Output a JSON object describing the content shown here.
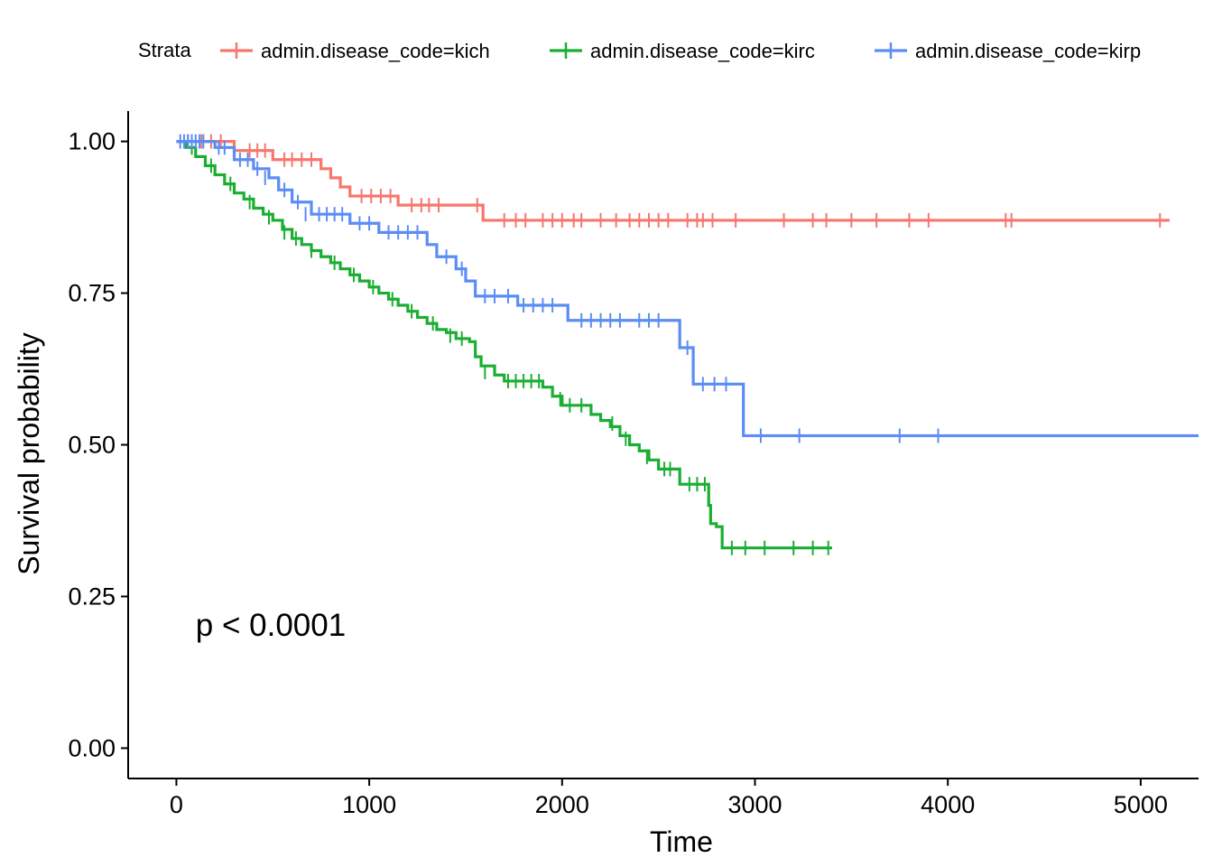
{
  "chart_data": {
    "type": "line",
    "xlabel": "Time",
    "ylabel": "Survival probability",
    "xlim": [
      -250,
      5300
    ],
    "ylim": [
      -0.05,
      1.05
    ],
    "x_ticks": [
      0,
      1000,
      2000,
      3000,
      4000,
      5000
    ],
    "x_tick_labels": [
      "0",
      "1000",
      "2000",
      "3000",
      "4000",
      "5000"
    ],
    "y_ticks": [
      0,
      0.25,
      0.5,
      0.75,
      1.0
    ],
    "y_tick_labels": [
      "0.00",
      "0.25",
      "0.50",
      "0.75",
      "1.00"
    ],
    "grid": false,
    "legend": {
      "title": "Strata",
      "position": "top",
      "entries": [
        "admin.disease_code=kich",
        "admin.disease_code=kirc",
        "admin.disease_code=kirp"
      ]
    },
    "annotation": {
      "text": "p < 0.0001",
      "x": 100,
      "y": 0.2
    },
    "series": [
      {
        "name": "admin.disease_code=kich",
        "color": "#F8766D",
        "steps": [
          [
            0,
            1.0
          ],
          [
            300,
            0.985
          ],
          [
            500,
            0.97
          ],
          [
            750,
            0.955
          ],
          [
            800,
            0.94
          ],
          [
            850,
            0.925
          ],
          [
            900,
            0.91
          ],
          [
            1150,
            0.895
          ],
          [
            1590,
            0.87
          ],
          [
            5150,
            0.87
          ]
        ],
        "censored": [
          [
            60,
            1.0
          ],
          [
            130,
            1.0
          ],
          [
            180,
            1.0
          ],
          [
            230,
            1.0
          ],
          [
            380,
            0.985
          ],
          [
            420,
            0.985
          ],
          [
            460,
            0.985
          ],
          [
            560,
            0.97
          ],
          [
            600,
            0.97
          ],
          [
            650,
            0.97
          ],
          [
            700,
            0.97
          ],
          [
            960,
            0.91
          ],
          [
            1010,
            0.91
          ],
          [
            1060,
            0.91
          ],
          [
            1110,
            0.91
          ],
          [
            1220,
            0.895
          ],
          [
            1270,
            0.895
          ],
          [
            1310,
            0.895
          ],
          [
            1360,
            0.895
          ],
          [
            1560,
            0.895
          ],
          [
            1700,
            0.87
          ],
          [
            1760,
            0.87
          ],
          [
            1810,
            0.87
          ],
          [
            1900,
            0.87
          ],
          [
            1950,
            0.87
          ],
          [
            2000,
            0.87
          ],
          [
            2060,
            0.87
          ],
          [
            2100,
            0.87
          ],
          [
            2200,
            0.87
          ],
          [
            2280,
            0.87
          ],
          [
            2350,
            0.87
          ],
          [
            2400,
            0.87
          ],
          [
            2450,
            0.87
          ],
          [
            2500,
            0.87
          ],
          [
            2550,
            0.87
          ],
          [
            2650,
            0.87
          ],
          [
            2700,
            0.87
          ],
          [
            2730,
            0.87
          ],
          [
            2780,
            0.87
          ],
          [
            2900,
            0.87
          ],
          [
            3150,
            0.87
          ],
          [
            3300,
            0.87
          ],
          [
            3370,
            0.87
          ],
          [
            3500,
            0.87
          ],
          [
            3630,
            0.87
          ],
          [
            3800,
            0.87
          ],
          [
            3900,
            0.87
          ],
          [
            4300,
            0.87
          ],
          [
            4330,
            0.87
          ],
          [
            5100,
            0.87
          ]
        ]
      },
      {
        "name": "admin.disease_code=kirc",
        "color": "#1AAE32",
        "steps": [
          [
            0,
            1.0
          ],
          [
            50,
            0.99
          ],
          [
            100,
            0.975
          ],
          [
            150,
            0.96
          ],
          [
            200,
            0.945
          ],
          [
            250,
            0.93
          ],
          [
            300,
            0.915
          ],
          [
            350,
            0.905
          ],
          [
            400,
            0.89
          ],
          [
            450,
            0.88
          ],
          [
            500,
            0.87
          ],
          [
            550,
            0.855
          ],
          [
            600,
            0.84
          ],
          [
            650,
            0.83
          ],
          [
            700,
            0.82
          ],
          [
            750,
            0.81
          ],
          [
            800,
            0.8
          ],
          [
            850,
            0.79
          ],
          [
            900,
            0.78
          ],
          [
            950,
            0.77
          ],
          [
            1000,
            0.76
          ],
          [
            1050,
            0.75
          ],
          [
            1100,
            0.74
          ],
          [
            1150,
            0.73
          ],
          [
            1200,
            0.72
          ],
          [
            1250,
            0.71
          ],
          [
            1300,
            0.7
          ],
          [
            1350,
            0.69
          ],
          [
            1400,
            0.685
          ],
          [
            1450,
            0.675
          ],
          [
            1520,
            0.67
          ],
          [
            1550,
            0.645
          ],
          [
            1580,
            0.63
          ],
          [
            1650,
            0.615
          ],
          [
            1700,
            0.605
          ],
          [
            1900,
            0.595
          ],
          [
            1950,
            0.58
          ],
          [
            2000,
            0.565
          ],
          [
            2150,
            0.55
          ],
          [
            2200,
            0.54
          ],
          [
            2250,
            0.53
          ],
          [
            2300,
            0.515
          ],
          [
            2350,
            0.5
          ],
          [
            2400,
            0.49
          ],
          [
            2450,
            0.475
          ],
          [
            2500,
            0.46
          ],
          [
            2610,
            0.435
          ],
          [
            2760,
            0.4
          ],
          [
            2770,
            0.37
          ],
          [
            2800,
            0.365
          ],
          [
            2830,
            0.33
          ],
          [
            3400,
            0.33
          ]
        ],
        "censored": [
          [
            80,
            0.99
          ],
          [
            180,
            0.96
          ],
          [
            280,
            0.93
          ],
          [
            380,
            0.9
          ],
          [
            480,
            0.875
          ],
          [
            560,
            0.85
          ],
          [
            620,
            0.84
          ],
          [
            700,
            0.82
          ],
          [
            820,
            0.8
          ],
          [
            920,
            0.78
          ],
          [
            1020,
            0.76
          ],
          [
            1120,
            0.74
          ],
          [
            1220,
            0.72
          ],
          [
            1330,
            0.7
          ],
          [
            1420,
            0.68
          ],
          [
            1480,
            0.675
          ],
          [
            1600,
            0.62
          ],
          [
            1720,
            0.605
          ],
          [
            1760,
            0.605
          ],
          [
            1800,
            0.605
          ],
          [
            1840,
            0.605
          ],
          [
            1880,
            0.605
          ],
          [
            1990,
            0.575
          ],
          [
            2040,
            0.565
          ],
          [
            2100,
            0.565
          ],
          [
            2260,
            0.535
          ],
          [
            2330,
            0.51
          ],
          [
            2440,
            0.48
          ],
          [
            2530,
            0.46
          ],
          [
            2560,
            0.46
          ],
          [
            2660,
            0.435
          ],
          [
            2700,
            0.435
          ],
          [
            2740,
            0.435
          ],
          [
            2880,
            0.33
          ],
          [
            2950,
            0.33
          ],
          [
            3050,
            0.33
          ],
          [
            3200,
            0.33
          ],
          [
            3300,
            0.33
          ],
          [
            3380,
            0.33
          ]
        ]
      },
      {
        "name": "admin.disease_code=kirp",
        "color": "#5B8DF5",
        "steps": [
          [
            0,
            1.0
          ],
          [
            200,
            0.99
          ],
          [
            300,
            0.97
          ],
          [
            400,
            0.955
          ],
          [
            480,
            0.94
          ],
          [
            530,
            0.92
          ],
          [
            600,
            0.9
          ],
          [
            700,
            0.88
          ],
          [
            900,
            0.865
          ],
          [
            1050,
            0.85
          ],
          [
            1300,
            0.83
          ],
          [
            1350,
            0.81
          ],
          [
            1450,
            0.79
          ],
          [
            1500,
            0.77
          ],
          [
            1550,
            0.745
          ],
          [
            1770,
            0.73
          ],
          [
            2030,
            0.705
          ],
          [
            2610,
            0.66
          ],
          [
            2680,
            0.6
          ],
          [
            2940,
            0.515
          ],
          [
            5300,
            0.515
          ]
        ],
        "censored": [
          [
            20,
            1.0
          ],
          [
            40,
            1.0
          ],
          [
            60,
            1.0
          ],
          [
            80,
            1.0
          ],
          [
            100,
            1.0
          ],
          [
            120,
            1.0
          ],
          [
            140,
            1.0
          ],
          [
            220,
            0.99
          ],
          [
            250,
            0.99
          ],
          [
            330,
            0.97
          ],
          [
            370,
            0.97
          ],
          [
            420,
            0.955
          ],
          [
            460,
            0.94
          ],
          [
            560,
            0.92
          ],
          [
            630,
            0.9
          ],
          [
            670,
            0.88
          ],
          [
            740,
            0.88
          ],
          [
            780,
            0.88
          ],
          [
            820,
            0.88
          ],
          [
            860,
            0.88
          ],
          [
            950,
            0.865
          ],
          [
            1000,
            0.865
          ],
          [
            1100,
            0.85
          ],
          [
            1150,
            0.85
          ],
          [
            1200,
            0.85
          ],
          [
            1250,
            0.85
          ],
          [
            1400,
            0.81
          ],
          [
            1480,
            0.79
          ],
          [
            1600,
            0.745
          ],
          [
            1650,
            0.745
          ],
          [
            1720,
            0.745
          ],
          [
            1800,
            0.73
          ],
          [
            1850,
            0.73
          ],
          [
            1900,
            0.73
          ],
          [
            1950,
            0.73
          ],
          [
            2100,
            0.705
          ],
          [
            2150,
            0.705
          ],
          [
            2200,
            0.705
          ],
          [
            2250,
            0.705
          ],
          [
            2300,
            0.705
          ],
          [
            2400,
            0.705
          ],
          [
            2450,
            0.705
          ],
          [
            2500,
            0.705
          ],
          [
            2650,
            0.66
          ],
          [
            2730,
            0.6
          ],
          [
            2790,
            0.6
          ],
          [
            2850,
            0.6
          ],
          [
            3030,
            0.515
          ],
          [
            3230,
            0.515
          ],
          [
            3750,
            0.515
          ],
          [
            3950,
            0.515
          ]
        ]
      }
    ]
  }
}
